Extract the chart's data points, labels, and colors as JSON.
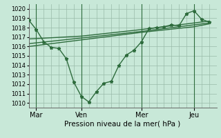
{
  "xlabel": "Pression niveau de la mer( hPa )",
  "bg_color": "#c8e8d8",
  "grid_color": "#99bbaa",
  "line_color": "#2d6b3c",
  "ylim": [
    1009.5,
    1020.5
  ],
  "yticks": [
    1010,
    1011,
    1012,
    1013,
    1014,
    1015,
    1016,
    1017,
    1018,
    1019,
    1020
  ],
  "xtick_pos": [
    0.5,
    3.5,
    7.5,
    11.0
  ],
  "xtick_labels": [
    "Mar",
    "Ven",
    "Mer",
    "Jeu"
  ],
  "vlines_x": [
    0.5,
    3.5,
    7.5,
    11.0
  ],
  "line1_x": [
    0,
    0.5,
    1.0,
    1.5,
    2.0,
    2.5,
    3.0,
    3.5,
    4.0,
    4.5,
    5.0,
    5.5,
    6.0,
    6.5,
    7.0,
    7.5,
    8.0,
    8.5,
    9.0,
    9.5,
    10.0,
    10.5,
    11.0,
    11.5,
    12.0
  ],
  "line1_y": [
    1018.8,
    1017.8,
    1016.5,
    1015.9,
    1015.8,
    1014.7,
    1012.2,
    1010.7,
    1010.1,
    1011.2,
    1012.1,
    1012.3,
    1014.0,
    1015.1,
    1015.6,
    1016.5,
    1017.9,
    1018.0,
    1018.1,
    1018.3,
    1018.2,
    1019.5,
    1019.8,
    1018.9,
    1018.6
  ],
  "line2_x": [
    0,
    3.5,
    7.5,
    11.0,
    12.0
  ],
  "line2_y": [
    1016.3,
    1016.9,
    1017.6,
    1018.3,
    1018.5
  ],
  "line3_x": [
    0,
    3.5,
    7.5,
    11.0,
    12.0
  ],
  "line3_y": [
    1016.0,
    1016.7,
    1017.5,
    1018.1,
    1018.4
  ],
  "line4_x": [
    0,
    3.5,
    7.5,
    11.0,
    12.0
  ],
  "line4_y": [
    1016.8,
    1017.1,
    1017.8,
    1018.5,
    1018.7
  ],
  "xlim": [
    0,
    12.5
  ],
  "marker_size": 3.5,
  "linewidth": 1.0
}
